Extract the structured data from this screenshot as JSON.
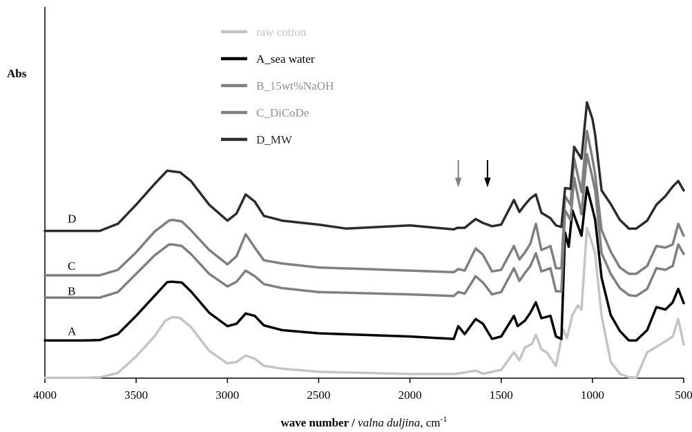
{
  "chart_data": {
    "type": "line",
    "ylabel": "Abs",
    "xlabel": {
      "bold": "wave number / ",
      "italic": "valna duljina",
      "unit": ", cm",
      "sup": "-1"
    },
    "xlim": [
      4000,
      500
    ],
    "x_reversed": true,
    "x_ticks": [
      4000,
      3500,
      3000,
      2500,
      2000,
      1500,
      1000,
      500
    ],
    "grid": false,
    "legend_position": "top-center",
    "curve_tags": [
      "A",
      "B",
      "C",
      "D"
    ],
    "series": [
      {
        "name": "raw cotton",
        "tag": "",
        "color": "#c4c4c4",
        "legend_text_color": "#c4c4c4",
        "points": [
          [
            4000,
            0.04
          ],
          [
            3800,
            0.04
          ],
          [
            3700,
            0.045
          ],
          [
            3600,
            0.1
          ],
          [
            3500,
            0.31
          ],
          [
            3400,
            0.56
          ],
          [
            3340,
            0.76
          ],
          [
            3300,
            0.805
          ],
          [
            3260,
            0.795
          ],
          [
            3200,
            0.68
          ],
          [
            3100,
            0.38
          ],
          [
            3000,
            0.22
          ],
          [
            2950,
            0.24
          ],
          [
            2900,
            0.32
          ],
          [
            2850,
            0.28
          ],
          [
            2800,
            0.19
          ],
          [
            2700,
            0.155
          ],
          [
            2500,
            0.115
          ],
          [
            2000,
            0.088
          ],
          [
            1750,
            0.088
          ],
          [
            1640,
            0.13
          ],
          [
            1600,
            0.09
          ],
          [
            1500,
            0.14
          ],
          [
            1430,
            0.36
          ],
          [
            1400,
            0.26
          ],
          [
            1370,
            0.42
          ],
          [
            1330,
            0.47
          ],
          [
            1310,
            0.58
          ],
          [
            1280,
            0.4
          ],
          [
            1250,
            0.36
          ],
          [
            1200,
            0.19
          ],
          [
            1160,
            0.65
          ],
          [
            1140,
            0.54
          ],
          [
            1110,
            0.83
          ],
          [
            1080,
            0.95
          ],
          [
            1060,
            0.9
          ],
          [
            1030,
            1.93
          ],
          [
            1000,
            1.72
          ],
          [
            985,
            1.6
          ],
          [
            950,
            0.82
          ],
          [
            900,
            0.24
          ],
          [
            850,
            0.09
          ],
          [
            800,
            0.045
          ],
          [
            760,
            0.04
          ],
          [
            700,
            0.36
          ],
          [
            650,
            0.43
          ],
          [
            600,
            0.5
          ],
          [
            560,
            0.56
          ],
          [
            530,
            0.78
          ],
          [
            500,
            0.46
          ]
        ]
      },
      {
        "name": "A_sea water",
        "tag": "A",
        "color": "#000000",
        "legend_text_color": "#000000",
        "points": [
          [
            4000,
            0.51
          ],
          [
            3800,
            0.51
          ],
          [
            3700,
            0.515
          ],
          [
            3600,
            0.59
          ],
          [
            3500,
            0.82
          ],
          [
            3400,
            1.07
          ],
          [
            3330,
            1.245
          ],
          [
            3300,
            1.25
          ],
          [
            3250,
            1.24
          ],
          [
            3200,
            1.13
          ],
          [
            3100,
            0.86
          ],
          [
            3000,
            0.69
          ],
          [
            2950,
            0.72
          ],
          [
            2900,
            0.85
          ],
          [
            2850,
            0.82
          ],
          [
            2800,
            0.7
          ],
          [
            2700,
            0.64
          ],
          [
            2500,
            0.6
          ],
          [
            2000,
            0.56
          ],
          [
            1760,
            0.53
          ],
          [
            1735,
            0.69
          ],
          [
            1700,
            0.59
          ],
          [
            1640,
            0.78
          ],
          [
            1600,
            0.72
          ],
          [
            1550,
            0.53
          ],
          [
            1500,
            0.56
          ],
          [
            1430,
            0.82
          ],
          [
            1410,
            0.69
          ],
          [
            1370,
            0.76
          ],
          [
            1340,
            0.86
          ],
          [
            1310,
            0.99
          ],
          [
            1280,
            0.79
          ],
          [
            1230,
            0.82
          ],
          [
            1200,
            0.56
          ],
          [
            1170,
            0.53
          ],
          [
            1150,
            1.87
          ],
          [
            1130,
            1.69
          ],
          [
            1110,
            2.15
          ],
          [
            1060,
            1.83
          ],
          [
            1030,
            2.44
          ],
          [
            1000,
            2.17
          ],
          [
            985,
            2.03
          ],
          [
            950,
            1.3
          ],
          [
            900,
            0.83
          ],
          [
            850,
            0.63
          ],
          [
            800,
            0.51
          ],
          [
            760,
            0.51
          ],
          [
            700,
            0.64
          ],
          [
            650,
            0.93
          ],
          [
            600,
            0.9
          ],
          [
            560,
            0.99
          ],
          [
            530,
            1.16
          ],
          [
            500,
            0.98
          ]
        ]
      },
      {
        "name": "B_15wt%NaOH",
        "tag": "B",
        "color": "#7f7f7f",
        "legend_text_color": "#8f8f8f",
        "points": [
          [
            4000,
            1.05
          ],
          [
            3800,
            1.05
          ],
          [
            3700,
            1.05
          ],
          [
            3600,
            1.12
          ],
          [
            3500,
            1.35
          ],
          [
            3400,
            1.58
          ],
          [
            3320,
            1.72
          ],
          [
            3300,
            1.72
          ],
          [
            3250,
            1.7
          ],
          [
            3200,
            1.6
          ],
          [
            3100,
            1.35
          ],
          [
            3000,
            1.19
          ],
          [
            2950,
            1.25
          ],
          [
            2900,
            1.39
          ],
          [
            2850,
            1.32
          ],
          [
            2800,
            1.22
          ],
          [
            2700,
            1.17
          ],
          [
            2500,
            1.12
          ],
          [
            2000,
            1.09
          ],
          [
            1760,
            1.07
          ],
          [
            1735,
            1.12
          ],
          [
            1700,
            1.1
          ],
          [
            1640,
            1.32
          ],
          [
            1600,
            1.24
          ],
          [
            1550,
            1.09
          ],
          [
            1500,
            1.12
          ],
          [
            1430,
            1.42
          ],
          [
            1400,
            1.26
          ],
          [
            1370,
            1.36
          ],
          [
            1340,
            1.45
          ],
          [
            1310,
            1.61
          ],
          [
            1280,
            1.38
          ],
          [
            1230,
            1.42
          ],
          [
            1200,
            1.13
          ],
          [
            1170,
            1.13
          ],
          [
            1150,
            2.15
          ],
          [
            1120,
            2.03
          ],
          [
            1100,
            2.56
          ],
          [
            1060,
            2.1
          ],
          [
            1030,
            2.86
          ],
          [
            1000,
            2.56
          ],
          [
            985,
            2.4
          ],
          [
            950,
            1.61
          ],
          [
            900,
            1.35
          ],
          [
            850,
            1.17
          ],
          [
            800,
            1.08
          ],
          [
            760,
            1.07
          ],
          [
            700,
            1.16
          ],
          [
            650,
            1.42
          ],
          [
            600,
            1.4
          ],
          [
            560,
            1.45
          ],
          [
            530,
            1.72
          ],
          [
            500,
            1.6
          ]
        ]
      },
      {
        "name": "C_DiCoDe",
        "tag": "C",
        "color": "#7f7f7f",
        "legend_text_color": "#8f8f8f",
        "points": [
          [
            4000,
            1.33
          ],
          [
            3800,
            1.33
          ],
          [
            3700,
            1.33
          ],
          [
            3600,
            1.4
          ],
          [
            3500,
            1.62
          ],
          [
            3400,
            1.88
          ],
          [
            3320,
            2.02
          ],
          [
            3300,
            2.03
          ],
          [
            3250,
            2.01
          ],
          [
            3200,
            1.9
          ],
          [
            3100,
            1.65
          ],
          [
            3000,
            1.47
          ],
          [
            2950,
            1.57
          ],
          [
            2900,
            1.85
          ],
          [
            2850,
            1.68
          ],
          [
            2800,
            1.52
          ],
          [
            2700,
            1.48
          ],
          [
            2500,
            1.43
          ],
          [
            2000,
            1.39
          ],
          [
            1760,
            1.37
          ],
          [
            1735,
            1.41
          ],
          [
            1700,
            1.39
          ],
          [
            1640,
            1.67
          ],
          [
            1600,
            1.59
          ],
          [
            1550,
            1.38
          ],
          [
            1500,
            1.4
          ],
          [
            1430,
            1.7
          ],
          [
            1400,
            1.53
          ],
          [
            1370,
            1.62
          ],
          [
            1340,
            1.73
          ],
          [
            1310,
            1.98
          ],
          [
            1280,
            1.65
          ],
          [
            1230,
            1.7
          ],
          [
            1200,
            1.42
          ],
          [
            1170,
            1.42
          ],
          [
            1150,
            2.33
          ],
          [
            1120,
            2.22
          ],
          [
            1100,
            2.8
          ],
          [
            1060,
            2.38
          ],
          [
            1030,
            3.15
          ],
          [
            1000,
            2.8
          ],
          [
            985,
            2.6
          ],
          [
            950,
            1.9
          ],
          [
            900,
            1.63
          ],
          [
            850,
            1.43
          ],
          [
            800,
            1.35
          ],
          [
            760,
            1.35
          ],
          [
            700,
            1.45
          ],
          [
            650,
            1.7
          ],
          [
            600,
            1.68
          ],
          [
            560,
            1.72
          ],
          [
            530,
            1.98
          ],
          [
            500,
            1.83
          ]
        ]
      },
      {
        "name": "D_MW",
        "tag": "D",
        "color": "#2b2b2b",
        "legend_text_color": "#2b2b2b",
        "points": [
          [
            4000,
            1.89
          ],
          [
            3800,
            1.89
          ],
          [
            3700,
            1.89
          ],
          [
            3600,
            1.98
          ],
          [
            3500,
            2.22
          ],
          [
            3400,
            2.48
          ],
          [
            3330,
            2.65
          ],
          [
            3300,
            2.64
          ],
          [
            3260,
            2.63
          ],
          [
            3200,
            2.52
          ],
          [
            3100,
            2.22
          ],
          [
            3000,
            2.02
          ],
          [
            2950,
            2.11
          ],
          [
            2900,
            2.35
          ],
          [
            2850,
            2.26
          ],
          [
            2800,
            2.08
          ],
          [
            2700,
            2.02
          ],
          [
            2500,
            1.97
          ],
          [
            2350,
            1.92
          ],
          [
            2000,
            1.96
          ],
          [
            1760,
            1.91
          ],
          [
            1740,
            1.93
          ],
          [
            1700,
            1.93
          ],
          [
            1640,
            2.04
          ],
          [
            1600,
            1.99
          ],
          [
            1550,
            1.95
          ],
          [
            1500,
            1.97
          ],
          [
            1430,
            2.28
          ],
          [
            1400,
            2.13
          ],
          [
            1370,
            2.22
          ],
          [
            1340,
            2.3
          ],
          [
            1310,
            2.35
          ],
          [
            1280,
            2.12
          ],
          [
            1230,
            2.05
          ],
          [
            1200,
            1.96
          ],
          [
            1170,
            1.94
          ],
          [
            1150,
            2.43
          ],
          [
            1120,
            2.42
          ],
          [
            1100,
            2.95
          ],
          [
            1060,
            2.8
          ],
          [
            1030,
            3.51
          ],
          [
            1000,
            3.3
          ],
          [
            985,
            3.1
          ],
          [
            950,
            2.4
          ],
          [
            900,
            2.23
          ],
          [
            850,
            2.03
          ],
          [
            800,
            1.92
          ],
          [
            760,
            1.92
          ],
          [
            700,
            2.02
          ],
          [
            650,
            2.22
          ],
          [
            600,
            2.33
          ],
          [
            560,
            2.45
          ],
          [
            530,
            2.52
          ],
          [
            500,
            2.4
          ]
        ]
      }
    ],
    "annotations": [
      {
        "type": "arrow",
        "x": 1735,
        "color": "#7f7f7f"
      },
      {
        "type": "arrow",
        "x": 1575,
        "color": "#000000"
      }
    ]
  }
}
